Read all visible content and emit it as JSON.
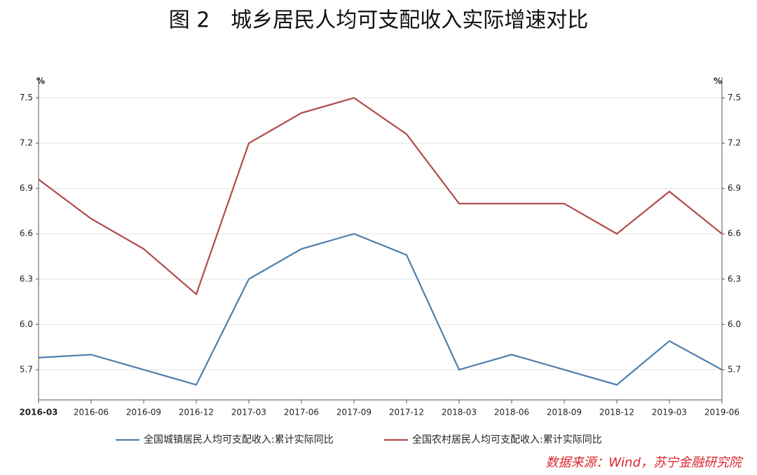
{
  "chart_data": {
    "type": "line",
    "title": "图 2　城乡居民人均可支配收入实际增速对比",
    "y_unit": "%",
    "y2_unit": "%",
    "source": "数据来源：Wind，苏宁金融研究院",
    "categories": [
      "2016-03",
      "2016-06",
      "2016-09",
      "2016-12",
      "2017-03",
      "2017-06",
      "2017-09",
      "2017-12",
      "2018-03",
      "2018-06",
      "2018-09",
      "2018-12",
      "2019-03",
      "2019-06"
    ],
    "series": [
      {
        "name": "全国城镇居民人均可支配收入:累计实际同比",
        "color": "#4f7fad",
        "values": [
          5.78,
          5.8,
          5.7,
          5.6,
          6.3,
          6.5,
          6.6,
          6.46,
          5.7,
          5.8,
          5.7,
          5.6,
          5.89,
          5.7
        ]
      },
      {
        "name": "全国农村居民人均可支配收入:累计实际同比",
        "color": "#b04c4a",
        "values": [
          6.96,
          6.7,
          6.5,
          6.2,
          7.2,
          7.4,
          7.5,
          7.26,
          6.8,
          6.8,
          6.8,
          6.6,
          6.88,
          6.6
        ]
      }
    ],
    "ylim": [
      5.5,
      7.6
    ],
    "yticks": [
      5.7,
      {
        "value": 6,
        "label": "6.0"
      },
      6.3,
      6.6,
      6.9,
      7.2,
      7.5
    ],
    "y2lim": [
      5.5,
      7.6
    ],
    "y2ticks": [
      5.7,
      {
        "value": 6,
        "label": "6.0"
      },
      6.3,
      6.6,
      6.9,
      7.2,
      7.5
    ],
    "grid": true
  }
}
